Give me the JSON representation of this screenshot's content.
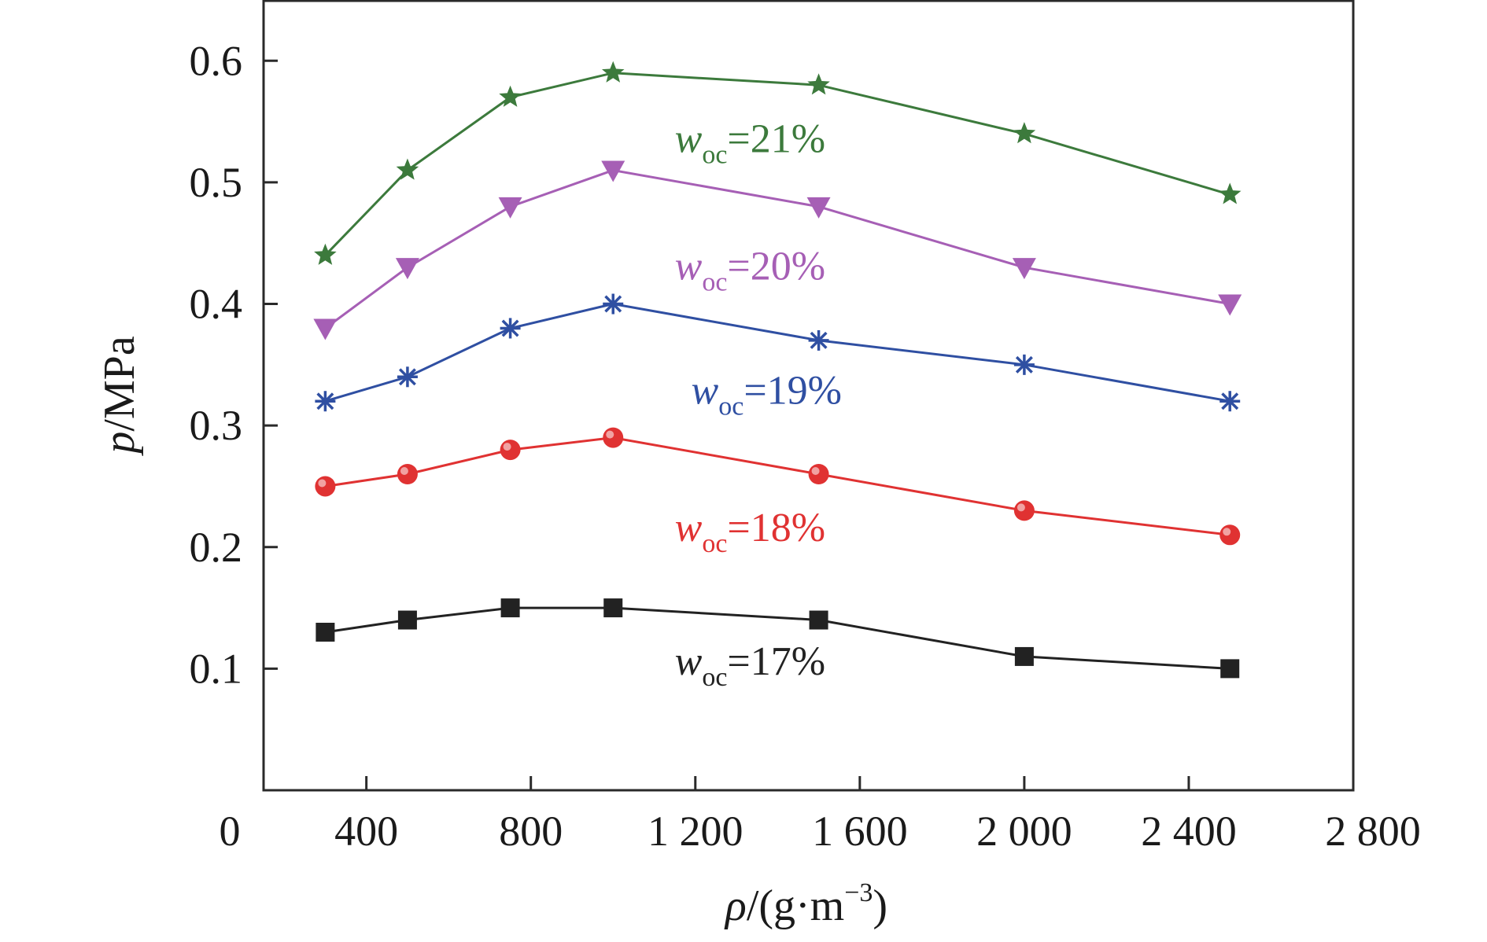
{
  "chart_data": {
    "type": "line",
    "title": "",
    "xlabel": {
      "symbol": "ρ",
      "unit": "/(g·m",
      "unit_sup": "−3",
      "close": ")"
    },
    "ylabel": {
      "symbol": "p",
      "unit": "/MPa"
    },
    "xlim": [
      150,
      2800
    ],
    "ylim": [
      0.0,
      0.65
    ],
    "x_ticks": [
      {
        "value": 0,
        "label": "0"
      },
      {
        "value": 400,
        "label": "400"
      },
      {
        "value": 800,
        "label": "800"
      },
      {
        "value": 1200,
        "label": "1 200"
      },
      {
        "value": 1600,
        "label": "1 600"
      },
      {
        "value": 2000,
        "label": "2 000"
      },
      {
        "value": 2400,
        "label": "2 400"
      },
      {
        "value": 2800,
        "label": "2 800"
      }
    ],
    "y_ticks": [
      {
        "value": 0.1,
        "label": "0.1"
      },
      {
        "value": 0.2,
        "label": "0.2"
      },
      {
        "value": 0.3,
        "label": "0.3"
      },
      {
        "value": 0.4,
        "label": "0.4"
      },
      {
        "value": 0.5,
        "label": "0.5"
      },
      {
        "value": 0.6,
        "label": "0.6"
      }
    ],
    "grid": false,
    "x": [
      300,
      500,
      750,
      1000,
      1500,
      2000,
      2500
    ],
    "series": [
      {
        "name": "w_oc=17%",
        "label_main": "w",
        "label_sub": "oc",
        "label_rest": "=17%",
        "color": "#222222",
        "marker": "square",
        "values": [
          0.13,
          0.14,
          0.15,
          0.15,
          0.14,
          0.11,
          0.1
        ],
        "label_anchor": [
          1150,
          0.095
        ]
      },
      {
        "name": "w_oc=18%",
        "label_main": "w",
        "label_sub": "oc",
        "label_rest": "=18%",
        "color": "#e03232",
        "marker": "circle",
        "values": [
          0.25,
          0.26,
          0.28,
          0.29,
          0.26,
          0.23,
          0.21
        ],
        "label_anchor": [
          1150,
          0.205
        ]
      },
      {
        "name": "w_oc=19%",
        "label_main": "w",
        "label_sub": "oc",
        "label_rest": "=19%",
        "color": "#2f4fa2",
        "marker": "asterisk",
        "values": [
          0.32,
          0.34,
          0.38,
          0.4,
          0.37,
          0.35,
          0.32
        ],
        "label_anchor": [
          1190,
          0.318
        ]
      },
      {
        "name": "w_oc=20%",
        "label_main": "w",
        "label_sub": "oc",
        "label_rest": "=20%",
        "color": "#a65fb5",
        "marker": "triangle",
        "values": [
          0.38,
          0.43,
          0.48,
          0.51,
          0.48,
          0.43,
          0.4
        ],
        "label_anchor": [
          1150,
          0.42
        ]
      },
      {
        "name": "w_oc=21%",
        "label_main": "w",
        "label_sub": "oc",
        "label_rest": "=21%",
        "color": "#3c7a3c",
        "marker": "star",
        "values": [
          0.44,
          0.51,
          0.57,
          0.59,
          0.58,
          0.54,
          0.49
        ],
        "label_anchor": [
          1150,
          0.525
        ]
      }
    ]
  }
}
